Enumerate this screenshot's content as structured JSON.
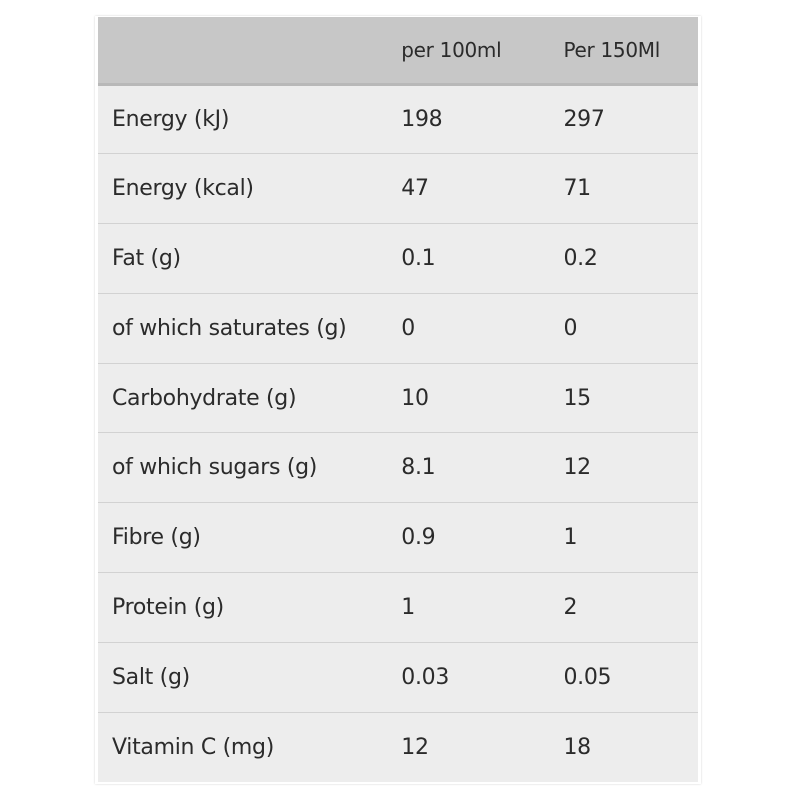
{
  "table": {
    "headers": [
      "",
      "per 100ml",
      "Per 150Ml"
    ],
    "rows": [
      [
        "Energy (kJ)",
        "198",
        "297"
      ],
      [
        "Energy (kcal)",
        "47",
        "71"
      ],
      [
        "Fat (g)",
        "0.1",
        "0.2"
      ],
      [
        "of which saturates (g)",
        "0",
        "0"
      ],
      [
        "Carbohydrate (g)",
        "10",
        "15"
      ],
      [
        "of which sugars (g)",
        "8.1",
        "12"
      ],
      [
        "Fibre (g)",
        "0.9",
        "1"
      ],
      [
        "Protein (g)",
        "1",
        "2"
      ],
      [
        "Salt (g)",
        "0.03",
        "0.05"
      ],
      [
        "Vitamin C (mg)",
        "12",
        "18"
      ]
    ]
  },
  "colors": {
    "header_background": "#c7c7c7",
    "row_background": "#ededed",
    "row_divider": "#d2d2d2",
    "text": "#2b2b2b"
  }
}
